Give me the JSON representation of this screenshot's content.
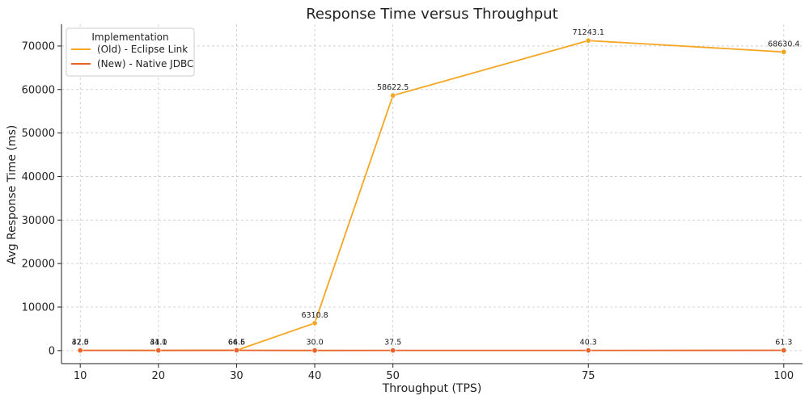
{
  "chart_data": {
    "type": "line",
    "title": "Response Time versus Throughput",
    "xlabel": "Throughput (TPS)",
    "ylabel": "Avg Response Time (ms)",
    "categories": [
      "10",
      "20",
      "30",
      "40",
      "50",
      "75",
      "100"
    ],
    "x": [
      10,
      20,
      30,
      40,
      50,
      75,
      100
    ],
    "ylim": [
      -3000,
      75000
    ],
    "yticks": [
      0,
      10000,
      20000,
      30000,
      40000,
      50000,
      60000,
      70000
    ],
    "grid": true,
    "legend": {
      "title": "Implementation",
      "placement": "top-left"
    },
    "series": [
      {
        "name": "(Old) - Eclipse Link",
        "color": "#f5a623",
        "values": [
          37.0,
          34.0,
          64.5,
          6310.8,
          58622.5,
          71243.1,
          68630.4
        ],
        "labels": [
          "37.0",
          "34.0",
          "64.5",
          "6310.8",
          "58622.5",
          "71243.1",
          "68630.4"
        ]
      },
      {
        "name": "(New) - Native JDBC",
        "color": "#e8642a",
        "values": [
          42.5,
          41.1,
          66.6,
          30.0,
          37.5,
          40.3,
          61.3
        ],
        "labels": [
          "42.5",
          "41.1",
          "66.6",
          "30.0",
          "37.5",
          "40.3",
          "61.3"
        ]
      }
    ]
  }
}
